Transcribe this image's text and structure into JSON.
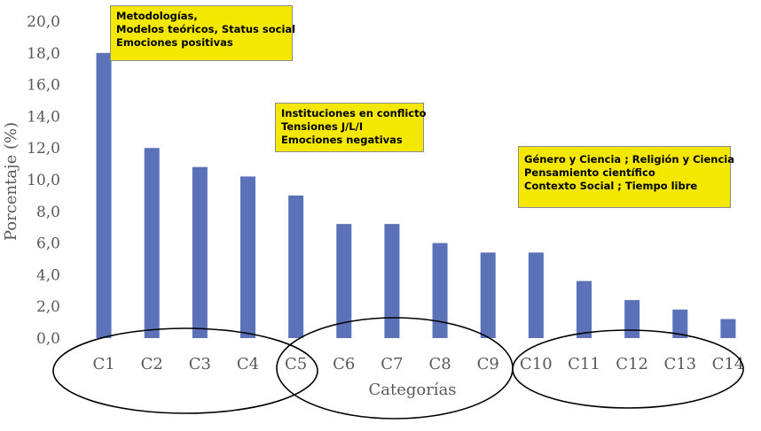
{
  "chart_data": {
    "type": "bar",
    "categories": [
      "C1",
      "C2",
      "C3",
      "C4",
      "C5",
      "C6",
      "C7",
      "C8",
      "C9",
      "C10",
      "C11",
      "C12",
      "C13",
      "C14"
    ],
    "values": [
      18.0,
      12.0,
      10.8,
      10.2,
      9.0,
      7.2,
      7.2,
      6.0,
      5.4,
      5.4,
      3.6,
      2.4,
      1.8,
      1.2
    ],
    "xlabel": "Categorías",
    "ylabel": "Porcentaje (%)",
    "ylim": [
      0,
      20
    ],
    "yticks": [
      "0,0",
      "2,0",
      "4,0",
      "6,0",
      "8,0",
      "10,0",
      "12,0",
      "14,0",
      "16,0",
      "18,0",
      "20,0"
    ],
    "grid": false,
    "bar_color": "#5b72b8",
    "annotations": [
      {
        "lines": [
          "Metodologías,",
          "Modelos teóricos, Status social",
          "Emociones positivas"
        ]
      },
      {
        "lines": [
          "Instituciones en conflicto",
          "Tensiones J/L/I",
          "Emociones negativas"
        ]
      },
      {
        "lines": [
          "Género y Ciencia ; Religión y Ciencia",
          "Pensamiento científico",
          "Contexto Social ; Tiempo libre"
        ]
      }
    ],
    "annotation_color": "#f4e800"
  }
}
